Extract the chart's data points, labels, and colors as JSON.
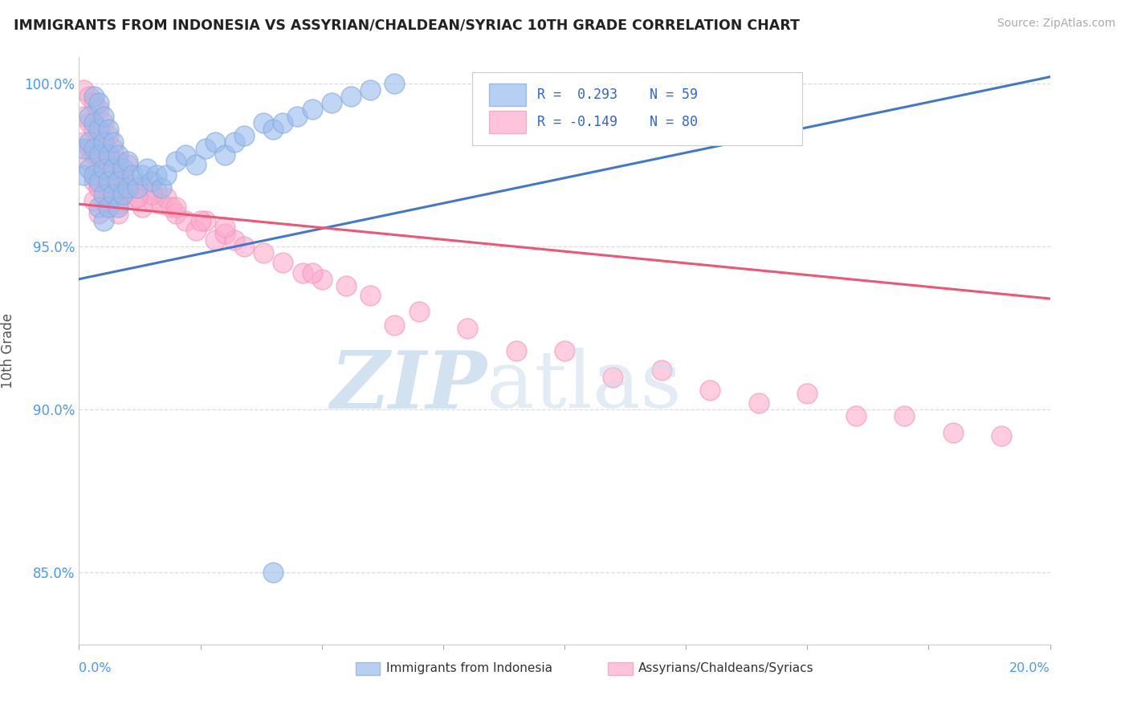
{
  "title": "IMMIGRANTS FROM INDONESIA VS ASSYRIAN/CHALDEAN/SYRIAC 10TH GRADE CORRELATION CHART",
  "source": "Source: ZipAtlas.com",
  "ylabel": "10th Grade",
  "legend_label_blue": "Immigrants from Indonesia",
  "legend_label_pink": "Assyrians/Chaldeans/Syriacs",
  "blue_color_fill": "#99BBEE",
  "blue_color_edge": "#88AADD",
  "pink_color_fill": "#FFAACC",
  "pink_color_edge": "#EE99BB",
  "trend_blue_color": "#4477CC",
  "trend_pink_color": "#EE5577",
  "watermark_color": "#CCDDEE",
  "xmin": 0.0,
  "xmax": 0.2,
  "ymin": 0.828,
  "ymax": 1.008,
  "yticks": [
    0.85,
    0.9,
    0.95,
    1.0
  ],
  "ytick_labels": [
    "85.0%",
    "90.0%",
    "95.0%",
    "100.0%"
  ],
  "blue_trend_y0": 0.94,
  "blue_trend_y1": 1.002,
  "pink_trend_y0": 0.963,
  "pink_trend_y1": 0.934,
  "blue_x": [
    0.001,
    0.001,
    0.002,
    0.002,
    0.002,
    0.003,
    0.003,
    0.003,
    0.003,
    0.004,
    0.004,
    0.004,
    0.004,
    0.004,
    0.005,
    0.005,
    0.005,
    0.005,
    0.005,
    0.006,
    0.006,
    0.006,
    0.006,
    0.007,
    0.007,
    0.007,
    0.008,
    0.008,
    0.008,
    0.009,
    0.009,
    0.01,
    0.01,
    0.011,
    0.012,
    0.013,
    0.014,
    0.015,
    0.016,
    0.017,
    0.018,
    0.02,
    0.022,
    0.024,
    0.026,
    0.028,
    0.03,
    0.032,
    0.034,
    0.038,
    0.04,
    0.042,
    0.045,
    0.048,
    0.052,
    0.056,
    0.06,
    0.065,
    0.04
  ],
  "blue_y": [
    0.98,
    0.972,
    0.99,
    0.982,
    0.974,
    0.996,
    0.988,
    0.98,
    0.972,
    0.994,
    0.986,
    0.978,
    0.97,
    0.962,
    0.99,
    0.982,
    0.974,
    0.966,
    0.958,
    0.986,
    0.978,
    0.97,
    0.962,
    0.982,
    0.974,
    0.966,
    0.978,
    0.97,
    0.962,
    0.974,
    0.966,
    0.976,
    0.968,
    0.972,
    0.968,
    0.972,
    0.974,
    0.97,
    0.972,
    0.968,
    0.972,
    0.976,
    0.978,
    0.975,
    0.98,
    0.982,
    0.978,
    0.982,
    0.984,
    0.988,
    0.986,
    0.988,
    0.99,
    0.992,
    0.994,
    0.996,
    0.998,
    1.0,
    0.85
  ],
  "pink_x": [
    0.001,
    0.001,
    0.001,
    0.002,
    0.002,
    0.002,
    0.003,
    0.003,
    0.003,
    0.003,
    0.004,
    0.004,
    0.004,
    0.004,
    0.004,
    0.005,
    0.005,
    0.005,
    0.005,
    0.006,
    0.006,
    0.006,
    0.007,
    0.007,
    0.007,
    0.008,
    0.008,
    0.008,
    0.009,
    0.009,
    0.01,
    0.01,
    0.011,
    0.012,
    0.013,
    0.014,
    0.015,
    0.016,
    0.017,
    0.018,
    0.019,
    0.02,
    0.022,
    0.024,
    0.026,
    0.028,
    0.03,
    0.032,
    0.034,
    0.038,
    0.042,
    0.046,
    0.05,
    0.055,
    0.06,
    0.07,
    0.08,
    0.1,
    0.12,
    0.15,
    0.17,
    0.19,
    0.18,
    0.16,
    0.14,
    0.13,
    0.11,
    0.09,
    0.065,
    0.048,
    0.03,
    0.025,
    0.02,
    0.015,
    0.012,
    0.008,
    0.006,
    0.004,
    0.003,
    0.002
  ],
  "pink_y": [
    0.998,
    0.99,
    0.982,
    0.996,
    0.988,
    0.98,
    0.994,
    0.986,
    0.978,
    0.97,
    0.992,
    0.984,
    0.976,
    0.968,
    0.96,
    0.988,
    0.98,
    0.972,
    0.964,
    0.984,
    0.976,
    0.968,
    0.98,
    0.972,
    0.964,
    0.976,
    0.968,
    0.96,
    0.972,
    0.964,
    0.975,
    0.967,
    0.969,
    0.965,
    0.962,
    0.968,
    0.964,
    0.967,
    0.963,
    0.965,
    0.962,
    0.96,
    0.958,
    0.955,
    0.958,
    0.952,
    0.954,
    0.952,
    0.95,
    0.948,
    0.945,
    0.942,
    0.94,
    0.938,
    0.935,
    0.93,
    0.925,
    0.918,
    0.912,
    0.905,
    0.898,
    0.892,
    0.893,
    0.898,
    0.902,
    0.906,
    0.91,
    0.918,
    0.926,
    0.942,
    0.956,
    0.958,
    0.962,
    0.966,
    0.965,
    0.963,
    0.965,
    0.968,
    0.964,
    0.976
  ]
}
